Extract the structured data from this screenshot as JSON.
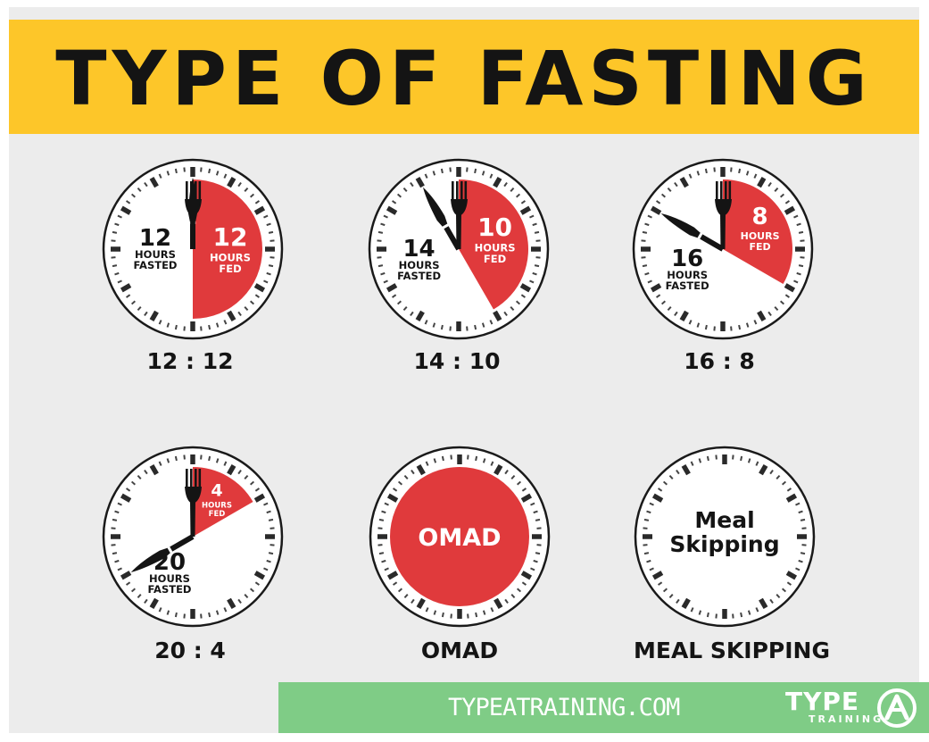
{
  "banner": {
    "title": "TYPE OF FASTING"
  },
  "colors": {
    "banner": "#fdc629",
    "fed": "#e03a3c",
    "panel": "#ececec",
    "footer": "#7fcc86",
    "ink": "#141414"
  },
  "clocks": [
    {
      "id": "12-12",
      "caption": "12 : 12",
      "fasted_hours": 12,
      "fed_hours": 12,
      "fasted": {
        "number": "12",
        "line1": "HOURS",
        "line2": "FASTED"
      },
      "fed": {
        "number": "12",
        "line1": "HOURS",
        "line2": "FED"
      }
    },
    {
      "id": "14-10",
      "caption": "14 : 10",
      "fasted_hours": 14,
      "fed_hours": 10,
      "fasted": {
        "number": "14",
        "line1": "HOURS",
        "line2": "FASTED"
      },
      "fed": {
        "number": "10",
        "line1": "HOURS",
        "line2": "FED"
      }
    },
    {
      "id": "16-8",
      "caption": "16 : 8",
      "fasted_hours": 16,
      "fed_hours": 8,
      "fasted": {
        "number": "16",
        "line1": "HOURS",
        "line2": "FASTED"
      },
      "fed": {
        "number": "8",
        "line1": "HOURS",
        "line2": "FED"
      }
    },
    {
      "id": "20-4",
      "caption": "20 : 4",
      "fasted_hours": 20,
      "fed_hours": 4,
      "fasted": {
        "number": "20",
        "line1": "HOURS",
        "line2": "FASTED"
      },
      "fed": {
        "number": "4",
        "line1": "HOURS",
        "line2": "FED"
      }
    },
    {
      "id": "omad",
      "caption": "OMAD",
      "full_label": "OMAD"
    },
    {
      "id": "meal-skipping",
      "caption": "MEAL SKIPPING",
      "center_line1": "Meal",
      "center_line2": "Skipping"
    }
  ],
  "footer": {
    "url": "TYPEATRAINING.COM",
    "brand": "TYPE",
    "brand_sub": "TRAINING",
    "logo_icon": "runner-a-logo-icon"
  }
}
